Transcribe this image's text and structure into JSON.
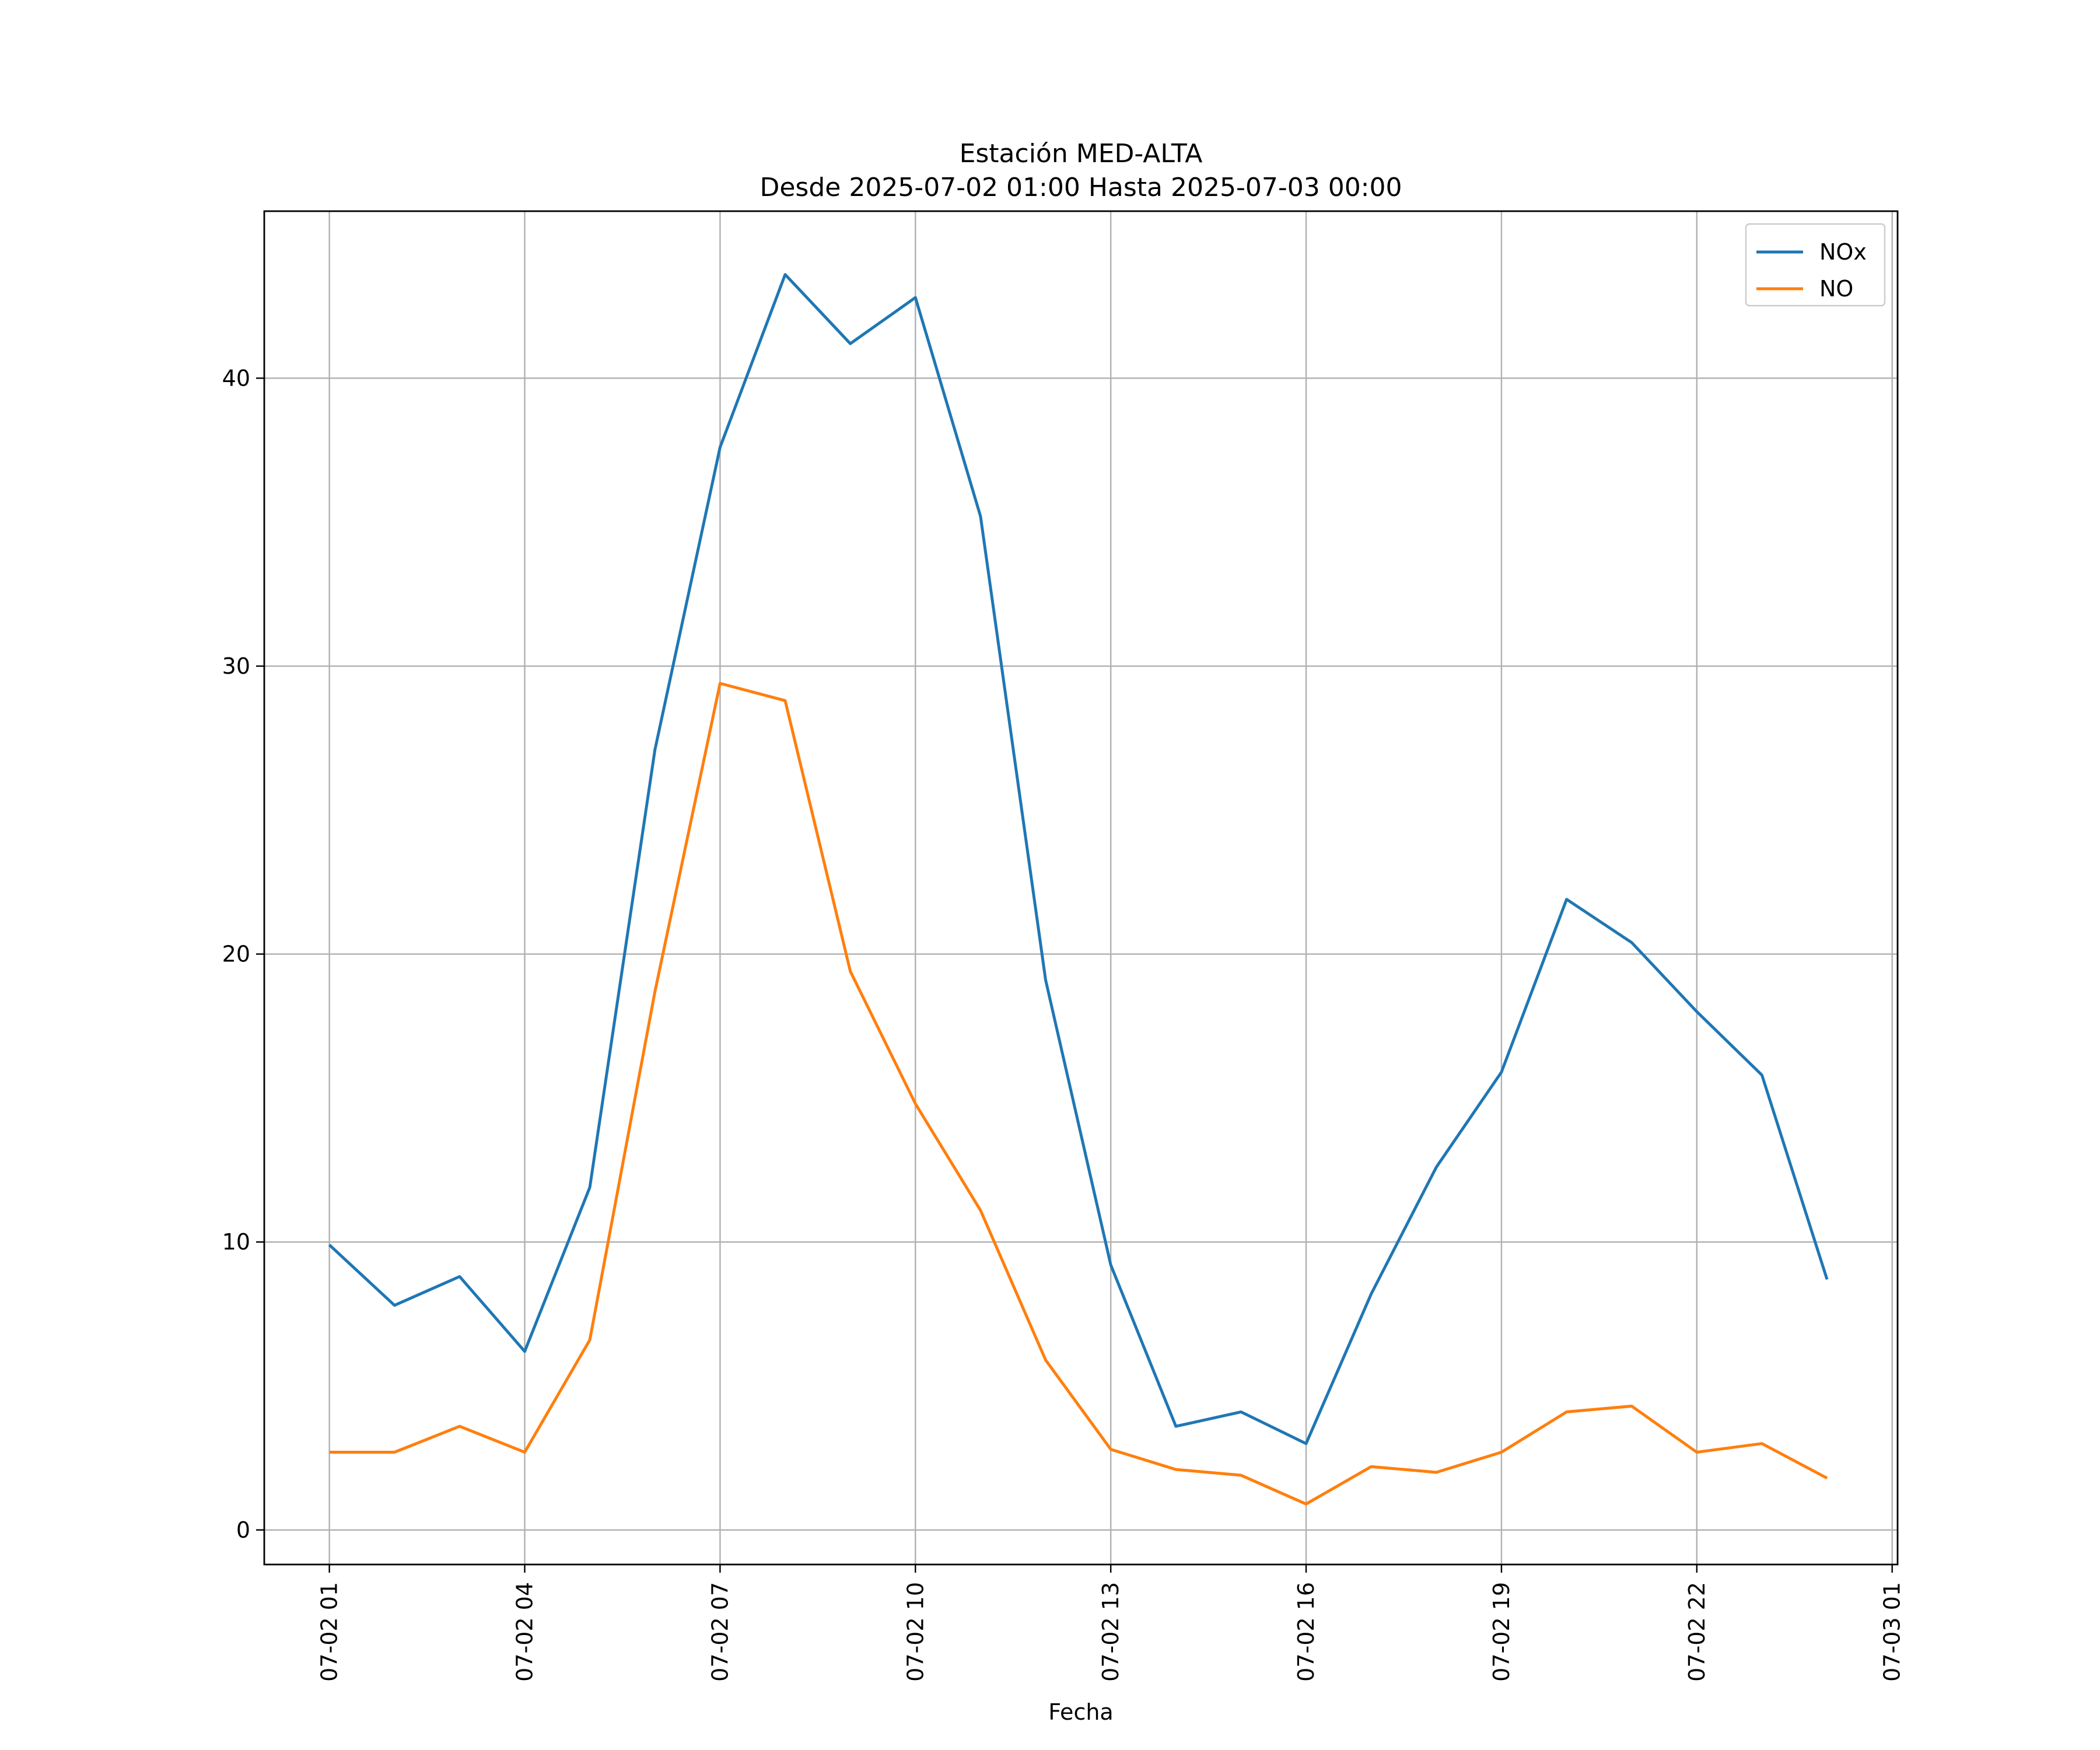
{
  "chart_data": {
    "type": "line",
    "title": "Estación MED-ALTA",
    "subtitle": "Desde 2025-07-02 01:00 Hasta 2025-07-03 00:00",
    "xlabel": "Fecha",
    "ylabel": "",
    "x": [
      "2025-07-02 01:00",
      "2025-07-02 02:00",
      "2025-07-02 03:00",
      "2025-07-02 04:00",
      "2025-07-02 05:00",
      "2025-07-02 06:00",
      "2025-07-02 07:00",
      "2025-07-02 08:00",
      "2025-07-02 09:00",
      "2025-07-02 10:00",
      "2025-07-02 11:00",
      "2025-07-02 12:00",
      "2025-07-02 13:00",
      "2025-07-02 14:00",
      "2025-07-02 15:00",
      "2025-07-02 16:00",
      "2025-07-02 17:00",
      "2025-07-02 18:00",
      "2025-07-02 19:00",
      "2025-07-02 20:00",
      "2025-07-02 21:00",
      "2025-07-02 22:00",
      "2025-07-02 23:00",
      "2025-07-03 00:00"
    ],
    "series": [
      {
        "name": "NOx",
        "color": "#1f77b4",
        "values": [
          9.9,
          7.8,
          8.8,
          6.2,
          11.9,
          27.1,
          37.6,
          43.6,
          41.2,
          42.8,
          35.2,
          19.1,
          9.2,
          3.6,
          4.1,
          3.0,
          8.2,
          12.6,
          15.9,
          21.9,
          20.4,
          18.0,
          15.8,
          8.7
        ]
      },
      {
        "name": "NO",
        "color": "#ff7f0e",
        "values": [
          2.7,
          2.7,
          3.6,
          2.7,
          6.6,
          18.7,
          29.4,
          28.8,
          19.4,
          14.8,
          11.1,
          5.9,
          2.8,
          2.1,
          1.9,
          0.9,
          2.2,
          2.0,
          2.7,
          4.1,
          4.3,
          2.7,
          3.0,
          1.8
        ]
      }
    ],
    "x_ticks": [
      "07-02 01",
      "07-02 04",
      "07-02 07",
      "07-02 10",
      "07-02 13",
      "07-02 16",
      "07-02 19",
      "07-02 22",
      "07-03 01"
    ],
    "y_ticks": [
      "0",
      "10",
      "20",
      "30",
      "40"
    ],
    "ylim": [
      -1.2,
      45.8
    ],
    "xlim": [
      "2025-07-02 00:00",
      "2025-07-03 01:05"
    ],
    "grid": true,
    "legend": "top-right"
  }
}
